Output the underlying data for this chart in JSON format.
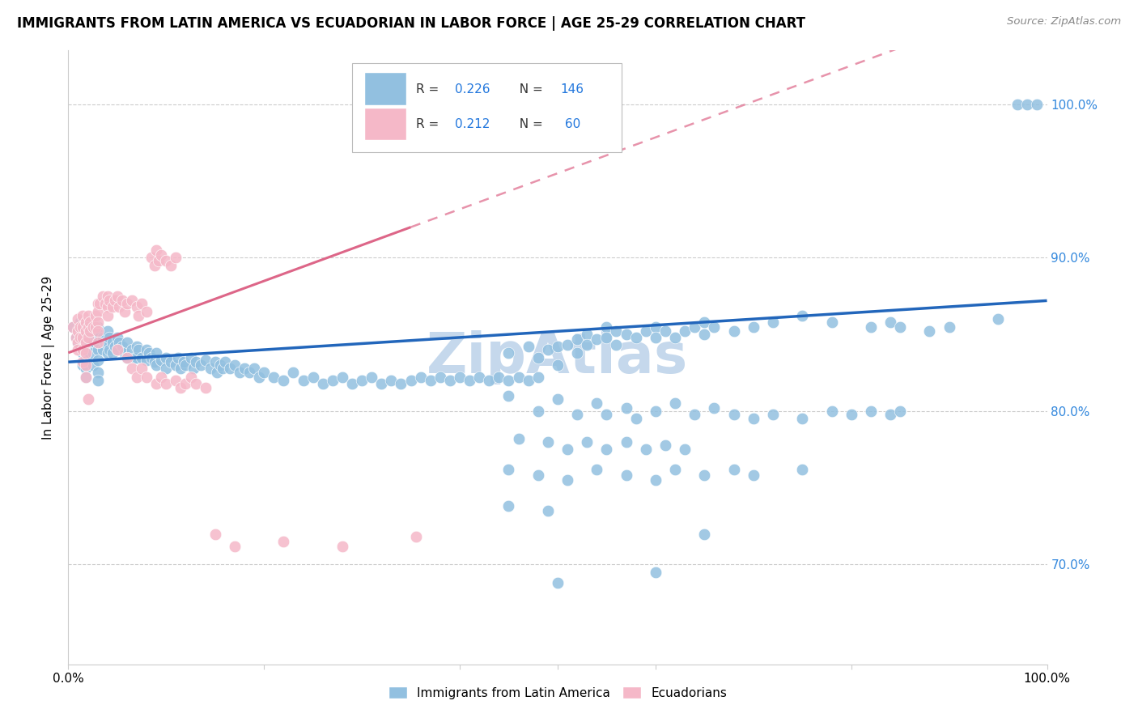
{
  "title": "IMMIGRANTS FROM LATIN AMERICA VS ECUADORIAN IN LABOR FORCE | AGE 25-29 CORRELATION CHART",
  "source": "Source: ZipAtlas.com",
  "ylabel": "In Labor Force | Age 25-29",
  "xlim": [
    0.0,
    1.0
  ],
  "ylim": [
    0.635,
    1.035
  ],
  "ytick_positions": [
    0.7,
    0.8,
    0.9,
    1.0
  ],
  "ytick_labels": [
    "70.0%",
    "80.0%",
    "90.0%",
    "100.0%"
  ],
  "blue_color": "#92c0e0",
  "pink_color": "#f5b8c8",
  "trend_blue_color": "#2266bb",
  "trend_pink_color": "#dd6688",
  "watermark": "ZipAtlas",
  "watermark_color": "#c5d8ec",
  "blue_scatter": [
    [
      0.005,
      0.855
    ],
    [
      0.008,
      0.848
    ],
    [
      0.01,
      0.853
    ],
    [
      0.01,
      0.845
    ],
    [
      0.012,
      0.858
    ],
    [
      0.013,
      0.852
    ],
    [
      0.015,
      0.845
    ],
    [
      0.015,
      0.838
    ],
    [
      0.015,
      0.83
    ],
    [
      0.018,
      0.855
    ],
    [
      0.018,
      0.848
    ],
    [
      0.018,
      0.842
    ],
    [
      0.018,
      0.835
    ],
    [
      0.018,
      0.828
    ],
    [
      0.018,
      0.822
    ],
    [
      0.02,
      0.85
    ],
    [
      0.02,
      0.843
    ],
    [
      0.022,
      0.855
    ],
    [
      0.022,
      0.848
    ],
    [
      0.025,
      0.853
    ],
    [
      0.025,
      0.845
    ],
    [
      0.025,
      0.838
    ],
    [
      0.025,
      0.83
    ],
    [
      0.028,
      0.852
    ],
    [
      0.028,
      0.845
    ],
    [
      0.03,
      0.855
    ],
    [
      0.03,
      0.848
    ],
    [
      0.03,
      0.84
    ],
    [
      0.03,
      0.833
    ],
    [
      0.03,
      0.825
    ],
    [
      0.03,
      0.82
    ],
    [
      0.032,
      0.85
    ],
    [
      0.035,
      0.848
    ],
    [
      0.035,
      0.84
    ],
    [
      0.038,
      0.845
    ],
    [
      0.04,
      0.852
    ],
    [
      0.04,
      0.845
    ],
    [
      0.04,
      0.838
    ],
    [
      0.042,
      0.848
    ],
    [
      0.042,
      0.84
    ],
    [
      0.045,
      0.845
    ],
    [
      0.045,
      0.838
    ],
    [
      0.048,
      0.842
    ],
    [
      0.05,
      0.848
    ],
    [
      0.05,
      0.84
    ],
    [
      0.052,
      0.845
    ],
    [
      0.055,
      0.842
    ],
    [
      0.058,
      0.838
    ],
    [
      0.06,
      0.845
    ],
    [
      0.06,
      0.835
    ],
    [
      0.065,
      0.84
    ],
    [
      0.068,
      0.835
    ],
    [
      0.07,
      0.842
    ],
    [
      0.07,
      0.835
    ],
    [
      0.072,
      0.84
    ],
    [
      0.075,
      0.835
    ],
    [
      0.08,
      0.84
    ],
    [
      0.08,
      0.833
    ],
    [
      0.082,
      0.838
    ],
    [
      0.085,
      0.835
    ],
    [
      0.088,
      0.832
    ],
    [
      0.09,
      0.838
    ],
    [
      0.09,
      0.83
    ],
    [
      0.095,
      0.833
    ],
    [
      0.1,
      0.835
    ],
    [
      0.1,
      0.828
    ],
    [
      0.105,
      0.832
    ],
    [
      0.11,
      0.83
    ],
    [
      0.112,
      0.835
    ],
    [
      0.115,
      0.828
    ],
    [
      0.118,
      0.832
    ],
    [
      0.12,
      0.83
    ],
    [
      0.125,
      0.835
    ],
    [
      0.128,
      0.828
    ],
    [
      0.13,
      0.832
    ],
    [
      0.135,
      0.83
    ],
    [
      0.14,
      0.833
    ],
    [
      0.145,
      0.828
    ],
    [
      0.15,
      0.832
    ],
    [
      0.152,
      0.825
    ],
    [
      0.155,
      0.83
    ],
    [
      0.158,
      0.828
    ],
    [
      0.16,
      0.832
    ],
    [
      0.165,
      0.828
    ],
    [
      0.17,
      0.83
    ],
    [
      0.175,
      0.825
    ],
    [
      0.18,
      0.828
    ],
    [
      0.185,
      0.825
    ],
    [
      0.19,
      0.828
    ],
    [
      0.195,
      0.822
    ],
    [
      0.2,
      0.825
    ],
    [
      0.21,
      0.822
    ],
    [
      0.22,
      0.82
    ],
    [
      0.23,
      0.825
    ],
    [
      0.24,
      0.82
    ],
    [
      0.25,
      0.822
    ],
    [
      0.26,
      0.818
    ],
    [
      0.27,
      0.82
    ],
    [
      0.28,
      0.822
    ],
    [
      0.29,
      0.818
    ],
    [
      0.3,
      0.82
    ],
    [
      0.31,
      0.822
    ],
    [
      0.32,
      0.818
    ],
    [
      0.33,
      0.82
    ],
    [
      0.34,
      0.818
    ],
    [
      0.35,
      0.82
    ],
    [
      0.36,
      0.822
    ],
    [
      0.37,
      0.82
    ],
    [
      0.38,
      0.822
    ],
    [
      0.39,
      0.82
    ],
    [
      0.4,
      0.822
    ],
    [
      0.41,
      0.82
    ],
    [
      0.42,
      0.822
    ],
    [
      0.43,
      0.82
    ],
    [
      0.44,
      0.822
    ],
    [
      0.45,
      0.82
    ],
    [
      0.46,
      0.822
    ],
    [
      0.47,
      0.82
    ],
    [
      0.48,
      0.822
    ],
    [
      0.45,
      0.838
    ],
    [
      0.47,
      0.842
    ],
    [
      0.48,
      0.835
    ],
    [
      0.49,
      0.84
    ],
    [
      0.5,
      0.842
    ],
    [
      0.5,
      0.83
    ],
    [
      0.51,
      0.843
    ],
    [
      0.52,
      0.847
    ],
    [
      0.52,
      0.838
    ],
    [
      0.53,
      0.85
    ],
    [
      0.53,
      0.843
    ],
    [
      0.54,
      0.847
    ],
    [
      0.55,
      0.855
    ],
    [
      0.55,
      0.848
    ],
    [
      0.56,
      0.852
    ],
    [
      0.56,
      0.843
    ],
    [
      0.57,
      0.85
    ],
    [
      0.58,
      0.848
    ],
    [
      0.59,
      0.852
    ],
    [
      0.6,
      0.855
    ],
    [
      0.6,
      0.848
    ],
    [
      0.61,
      0.852
    ],
    [
      0.62,
      0.848
    ],
    [
      0.63,
      0.852
    ],
    [
      0.64,
      0.855
    ],
    [
      0.65,
      0.858
    ],
    [
      0.65,
      0.85
    ],
    [
      0.66,
      0.855
    ],
    [
      0.68,
      0.852
    ],
    [
      0.7,
      0.855
    ],
    [
      0.72,
      0.858
    ],
    [
      0.75,
      0.862
    ],
    [
      0.78,
      0.858
    ],
    [
      0.82,
      0.855
    ],
    [
      0.84,
      0.858
    ],
    [
      0.85,
      0.855
    ],
    [
      0.88,
      0.852
    ],
    [
      0.9,
      0.855
    ],
    [
      0.95,
      0.86
    ],
    [
      0.97,
      1.0
    ],
    [
      0.98,
      1.0
    ],
    [
      0.99,
      1.0
    ],
    [
      0.45,
      0.81
    ],
    [
      0.48,
      0.8
    ],
    [
      0.5,
      0.808
    ],
    [
      0.52,
      0.798
    ],
    [
      0.54,
      0.805
    ],
    [
      0.55,
      0.798
    ],
    [
      0.57,
      0.802
    ],
    [
      0.58,
      0.795
    ],
    [
      0.6,
      0.8
    ],
    [
      0.62,
      0.805
    ],
    [
      0.64,
      0.798
    ],
    [
      0.66,
      0.802
    ],
    [
      0.68,
      0.798
    ],
    [
      0.7,
      0.795
    ],
    [
      0.72,
      0.798
    ],
    [
      0.75,
      0.795
    ],
    [
      0.78,
      0.8
    ],
    [
      0.8,
      0.798
    ],
    [
      0.82,
      0.8
    ],
    [
      0.84,
      0.798
    ],
    [
      0.85,
      0.8
    ],
    [
      0.46,
      0.782
    ],
    [
      0.49,
      0.78
    ],
    [
      0.51,
      0.775
    ],
    [
      0.53,
      0.78
    ],
    [
      0.55,
      0.775
    ],
    [
      0.57,
      0.78
    ],
    [
      0.59,
      0.775
    ],
    [
      0.61,
      0.778
    ],
    [
      0.63,
      0.775
    ],
    [
      0.45,
      0.762
    ],
    [
      0.48,
      0.758
    ],
    [
      0.51,
      0.755
    ],
    [
      0.54,
      0.762
    ],
    [
      0.57,
      0.758
    ],
    [
      0.6,
      0.755
    ],
    [
      0.62,
      0.762
    ],
    [
      0.65,
      0.758
    ],
    [
      0.68,
      0.762
    ],
    [
      0.7,
      0.758
    ],
    [
      0.75,
      0.762
    ],
    [
      0.45,
      0.738
    ],
    [
      0.49,
      0.735
    ],
    [
      0.5,
      0.688
    ],
    [
      0.6,
      0.695
    ],
    [
      0.65,
      0.72
    ]
  ],
  "pink_scatter": [
    [
      0.005,
      0.855
    ],
    [
      0.008,
      0.848
    ],
    [
      0.01,
      0.86
    ],
    [
      0.01,
      0.852
    ],
    [
      0.01,
      0.845
    ],
    [
      0.01,
      0.84
    ],
    [
      0.012,
      0.855
    ],
    [
      0.012,
      0.848
    ],
    [
      0.015,
      0.862
    ],
    [
      0.015,
      0.855
    ],
    [
      0.015,
      0.848
    ],
    [
      0.015,
      0.84
    ],
    [
      0.015,
      0.832
    ],
    [
      0.018,
      0.858
    ],
    [
      0.018,
      0.852
    ],
    [
      0.018,
      0.845
    ],
    [
      0.018,
      0.838
    ],
    [
      0.018,
      0.83
    ],
    [
      0.018,
      0.822
    ],
    [
      0.02,
      0.862
    ],
    [
      0.02,
      0.855
    ],
    [
      0.02,
      0.848
    ],
    [
      0.022,
      0.858
    ],
    [
      0.022,
      0.852
    ],
    [
      0.025,
      0.855
    ],
    [
      0.028,
      0.862
    ],
    [
      0.028,
      0.855
    ],
    [
      0.03,
      0.87
    ],
    [
      0.03,
      0.865
    ],
    [
      0.03,
      0.858
    ],
    [
      0.03,
      0.852
    ],
    [
      0.03,
      0.845
    ],
    [
      0.032,
      0.87
    ],
    [
      0.035,
      0.875
    ],
    [
      0.038,
      0.87
    ],
    [
      0.04,
      0.875
    ],
    [
      0.04,
      0.868
    ],
    [
      0.04,
      0.862
    ],
    [
      0.042,
      0.872
    ],
    [
      0.045,
      0.868
    ],
    [
      0.048,
      0.872
    ],
    [
      0.05,
      0.875
    ],
    [
      0.052,
      0.868
    ],
    [
      0.055,
      0.872
    ],
    [
      0.058,
      0.865
    ],
    [
      0.06,
      0.87
    ],
    [
      0.065,
      0.872
    ],
    [
      0.07,
      0.868
    ],
    [
      0.072,
      0.862
    ],
    [
      0.075,
      0.87
    ],
    [
      0.08,
      0.865
    ],
    [
      0.085,
      0.9
    ],
    [
      0.088,
      0.895
    ],
    [
      0.09,
      0.905
    ],
    [
      0.092,
      0.898
    ],
    [
      0.095,
      0.902
    ],
    [
      0.1,
      0.898
    ],
    [
      0.105,
      0.895
    ],
    [
      0.11,
      0.9
    ],
    [
      0.02,
      0.808
    ],
    [
      0.05,
      0.84
    ],
    [
      0.06,
      0.835
    ],
    [
      0.065,
      0.828
    ],
    [
      0.07,
      0.822
    ],
    [
      0.075,
      0.828
    ],
    [
      0.08,
      0.822
    ],
    [
      0.09,
      0.818
    ],
    [
      0.095,
      0.822
    ],
    [
      0.1,
      0.818
    ],
    [
      0.11,
      0.82
    ],
    [
      0.115,
      0.815
    ],
    [
      0.12,
      0.818
    ],
    [
      0.125,
      0.822
    ],
    [
      0.13,
      0.818
    ],
    [
      0.14,
      0.815
    ],
    [
      0.15,
      0.72
    ],
    [
      0.17,
      0.712
    ],
    [
      0.22,
      0.715
    ],
    [
      0.28,
      0.712
    ],
    [
      0.355,
      0.718
    ]
  ]
}
